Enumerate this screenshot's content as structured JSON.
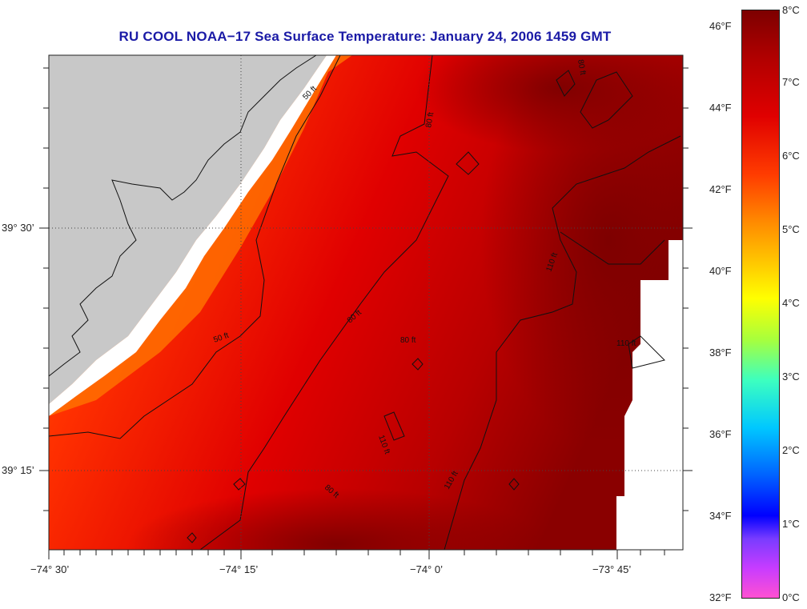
{
  "title": "RU COOL  NOAA−17  Sea Surface Temperature:  January 24, 2006 1459 GMT",
  "map": {
    "lat_labels": [
      "39° 30’",
      "39° 15’"
    ],
    "lon_labels": [
      "−74° 30’",
      "−74° 15’",
      "−74° 0’",
      "−73° 45’"
    ],
    "contour_labels": [
      "50 ft",
      "50 ft",
      "80 ft",
      "80 ft",
      "80 ft",
      "80 ft",
      "80 ft",
      "110 ft",
      "110 ft",
      "110 ft",
      "110 ft"
    ],
    "colors": {
      "land": "#c8c8c8",
      "nodata": "#ffffff",
      "sst_dark": "#8b0000",
      "sst_mid": "#d40000",
      "sst_warm": "#ff3000",
      "sst_orange": "#ff7a00",
      "sst_yellow": "#ffd000",
      "contour": "#111111"
    }
  },
  "colorbar": {
    "labels_f": [
      "46°F",
      "44°F",
      "42°F",
      "40°F",
      "38°F",
      "36°F",
      "34°F",
      "32°F"
    ],
    "labels_c": [
      "8°C",
      "7°C",
      "6°C",
      "5°C",
      "4°C",
      "3°C",
      "2°C",
      "1°C",
      "0°C"
    ]
  }
}
